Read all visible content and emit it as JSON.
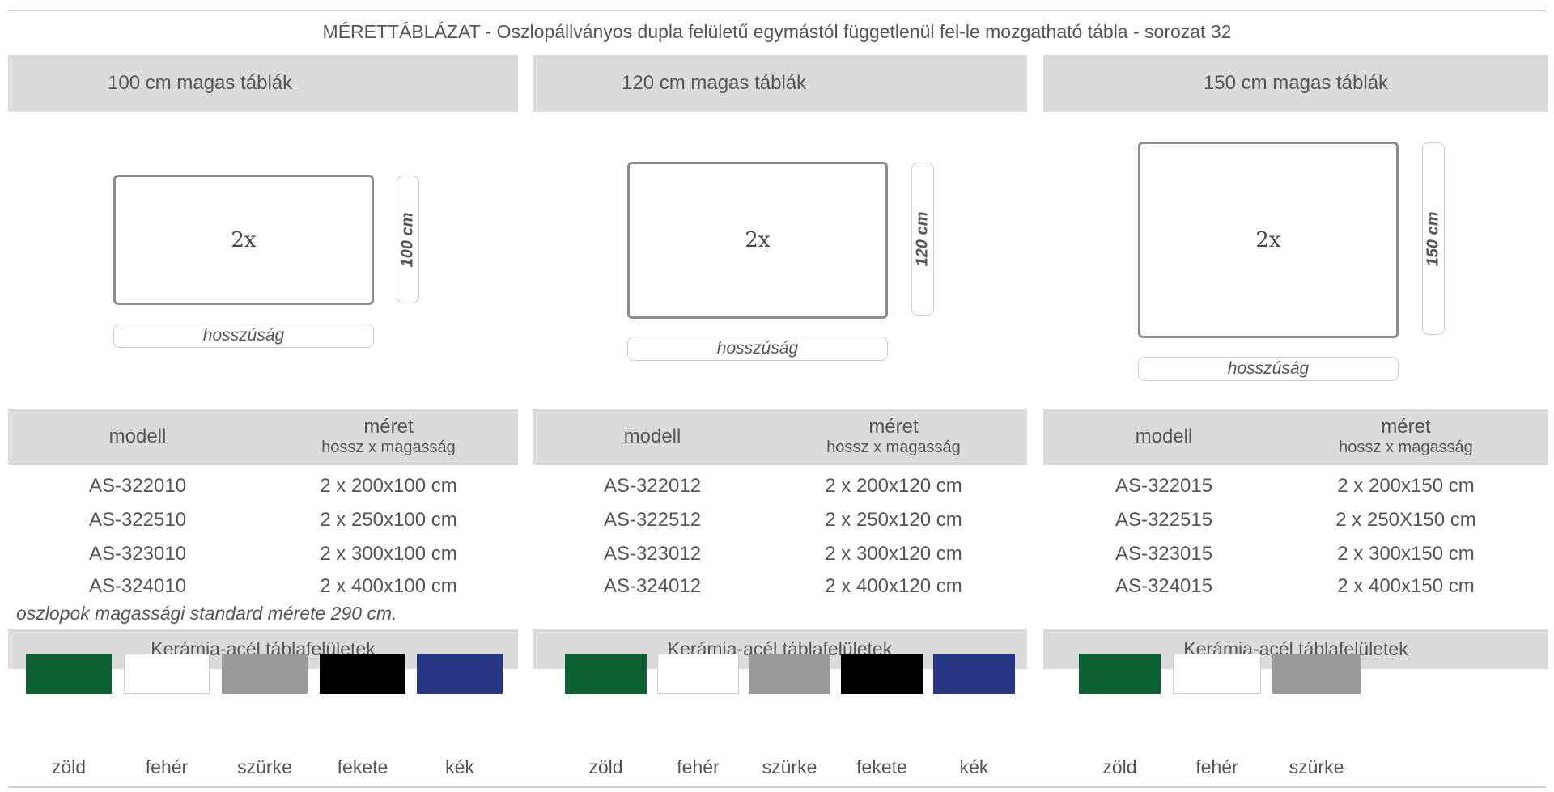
{
  "title": "MÉRETTÁBLÁZAT - Oszlopállványos dupla felületű egymástól függetlenül fel-le mozgatható tábla - sorozat 32",
  "columns": [
    {
      "heading": "100 cm magas táblák",
      "board_label": "2x",
      "height_label": "100 cm",
      "length_label": "hosszúság",
      "table_header": {
        "model": "modell",
        "size": "méret",
        "size_sub": "hossz x magasság"
      },
      "rows": [
        {
          "model": "AS-322010",
          "size": "2 x 200x100 cm"
        },
        {
          "model": "AS-322510",
          "size": "2 x 250x100 cm"
        },
        {
          "model": "AS-323010",
          "size": "2 x 300x100 cm"
        },
        {
          "model": "AS-324010",
          "size": "2 x 400x100 cm"
        }
      ],
      "surface_heading": "Kerámia-acél táblafelületek",
      "colors": [
        {
          "name": "zöld",
          "hex": "#0b6131"
        },
        {
          "name": "fehér",
          "hex": "#ffffff"
        },
        {
          "name": "szürke",
          "hex": "#9a9a9a"
        },
        {
          "name": "fekete",
          "hex": "#000000"
        },
        {
          "name": "kék",
          "hex": "#263682"
        }
      ]
    },
    {
      "heading": "120 cm magas táblák",
      "board_label": "2x",
      "height_label": "120 cm",
      "length_label": "hosszúság",
      "table_header": {
        "model": "modell",
        "size": "méret",
        "size_sub": "hossz x magasság"
      },
      "rows": [
        {
          "model": "AS-322012",
          "size": "2 x 200x120 cm"
        },
        {
          "model": "AS-322512",
          "size": "2 x 250x120 cm"
        },
        {
          "model": "AS-323012",
          "size": "2 x 300x120 cm"
        },
        {
          "model": "AS-324012",
          "size": "2 x 400x120 cm"
        }
      ],
      "surface_heading": "Kerámia-acél táblafelületek",
      "colors": [
        {
          "name": "zöld",
          "hex": "#0b6131"
        },
        {
          "name": "fehér",
          "hex": "#ffffff"
        },
        {
          "name": "szürke",
          "hex": "#9a9a9a"
        },
        {
          "name": "fekete",
          "hex": "#000000"
        },
        {
          "name": "kék",
          "hex": "#263682"
        }
      ]
    },
    {
      "heading": "150 cm magas táblák",
      "board_label": "2x",
      "height_label": "150 cm",
      "length_label": "hosszúság",
      "table_header": {
        "model": "modell",
        "size": "méret",
        "size_sub": "hossz x magasság"
      },
      "rows": [
        {
          "model": "AS-322015",
          "size": "2 x 200x150 cm"
        },
        {
          "model": "AS-322515",
          "size": "2 x 250X150 cm"
        },
        {
          "model": "AS-323015",
          "size": "2 x 300x150 cm"
        },
        {
          "model": "AS-324015",
          "size": "2 x 400x150 cm"
        }
      ],
      "surface_heading": "Kerámia-acél táblafelületek",
      "colors": [
        {
          "name": "zöld",
          "hex": "#0b6131"
        },
        {
          "name": "fehér",
          "hex": "#ffffff"
        },
        {
          "name": "szürke",
          "hex": "#9a9a9a"
        }
      ]
    }
  ],
  "note": "oszlopok magassági standard mérete 290 cm."
}
